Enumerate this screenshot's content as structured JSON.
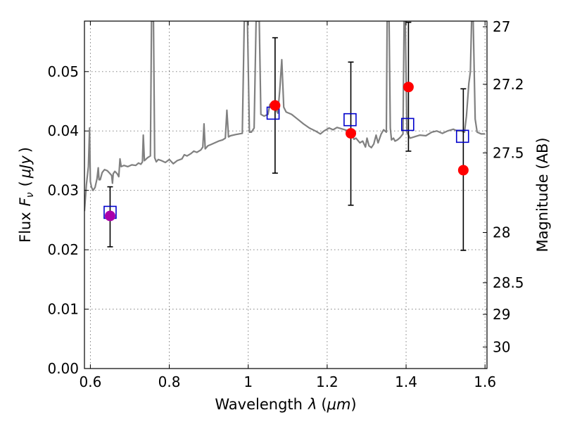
{
  "chart_data": {
    "type": "scatter",
    "xlabel_text": "Wavelength",
    "xlabel_symbol": "λ",
    "xlabel_unit": "μm",
    "ylabel_text": "Flux",
    "ylabel_symbol": "F",
    "ylabel_subscript": "ν",
    "ylabel_unit": "μJy",
    "y2label": "Magnitude (AB)",
    "xlim": [
      0.585,
      1.605
    ],
    "ylim": [
      0.0,
      0.0585
    ],
    "grid": true,
    "x_ticks": [
      {
        "value": 0.6,
        "label": "0.6"
      },
      {
        "value": 0.8,
        "label": "0.8"
      },
      {
        "value": 1.0,
        "label": "1"
      },
      {
        "value": 1.2,
        "label": "1.2"
      },
      {
        "value": 1.4,
        "label": "1.4"
      },
      {
        "value": 1.6,
        "label": "1.6"
      }
    ],
    "y_ticks": [
      {
        "value": 0.0,
        "label": "0.00"
      },
      {
        "value": 0.01,
        "label": "0.01"
      },
      {
        "value": 0.02,
        "label": "0.02"
      },
      {
        "value": 0.03,
        "label": "0.03"
      },
      {
        "value": 0.04,
        "label": "0.04"
      },
      {
        "value": 0.05,
        "label": "0.05"
      }
    ],
    "y2_ticks": [
      {
        "value": 27.0,
        "label": "27"
      },
      {
        "value": 27.2,
        "label": "27.2"
      },
      {
        "value": 27.5,
        "label": "27.5"
      },
      {
        "value": 28.0,
        "label": "28"
      },
      {
        "value": 28.5,
        "label": "28.5"
      },
      {
        "value": 29.0,
        "label": "29"
      },
      {
        "value": 30.0,
        "label": "30"
      }
    ],
    "colors": {
      "spectrum": "#808080",
      "model_photometry": "#0000cc",
      "observed": "#ff0000",
      "observed_first": "#aa00aa",
      "errorbar": "#000000"
    },
    "series": [
      {
        "kind": "spectrum",
        "points": [
          [
            0.585,
            0.0265
          ],
          [
            0.59,
            0.031
          ],
          [
            0.595,
            0.034
          ],
          [
            0.598,
            0.0405
          ],
          [
            0.6,
            0.0315
          ],
          [
            0.603,
            0.0305
          ],
          [
            0.607,
            0.03
          ],
          [
            0.612,
            0.0305
          ],
          [
            0.617,
            0.032
          ],
          [
            0.62,
            0.0338
          ],
          [
            0.622,
            0.0318
          ],
          [
            0.625,
            0.0318
          ],
          [
            0.63,
            0.033
          ],
          [
            0.636,
            0.0335
          ],
          [
            0.643,
            0.0333
          ],
          [
            0.65,
            0.0328
          ],
          [
            0.654,
            0.0325
          ],
          [
            0.656,
            0.0312
          ],
          [
            0.658,
            0.0328
          ],
          [
            0.662,
            0.0332
          ],
          [
            0.668,
            0.0328
          ],
          [
            0.672,
            0.0323
          ],
          [
            0.675,
            0.0353
          ],
          [
            0.678,
            0.034
          ],
          [
            0.685,
            0.0342
          ],
          [
            0.695,
            0.034
          ],
          [
            0.705,
            0.0343
          ],
          [
            0.715,
            0.0342
          ],
          [
            0.722,
            0.0346
          ],
          [
            0.728,
            0.0344
          ],
          [
            0.732,
            0.0348
          ],
          [
            0.734,
            0.0393
          ],
          [
            0.737,
            0.035
          ],
          [
            0.745,
            0.0355
          ],
          [
            0.752,
            0.0358
          ],
          [
            0.755,
            0.0585
          ],
          [
            0.76,
            0.0585
          ],
          [
            0.763,
            0.0355
          ],
          [
            0.767,
            0.0348
          ],
          [
            0.772,
            0.0352
          ],
          [
            0.78,
            0.035
          ],
          [
            0.79,
            0.0347
          ],
          [
            0.8,
            0.0352
          ],
          [
            0.81,
            0.0345
          ],
          [
            0.82,
            0.035
          ],
          [
            0.832,
            0.0353
          ],
          [
            0.838,
            0.036
          ],
          [
            0.845,
            0.0358
          ],
          [
            0.855,
            0.0362
          ],
          [
            0.862,
            0.0366
          ],
          [
            0.87,
            0.0364
          ],
          [
            0.88,
            0.0368
          ],
          [
            0.885,
            0.0373
          ],
          [
            0.888,
            0.0412
          ],
          [
            0.891,
            0.037
          ],
          [
            0.898,
            0.0375
          ],
          [
            0.905,
            0.0377
          ],
          [
            0.915,
            0.038
          ],
          [
            0.925,
            0.0383
          ],
          [
            0.935,
            0.0385
          ],
          [
            0.942,
            0.0388
          ],
          [
            0.946,
            0.0435
          ],
          [
            0.95,
            0.039
          ],
          [
            0.955,
            0.0392
          ],
          [
            0.968,
            0.0394
          ],
          [
            0.985,
            0.0396
          ],
          [
            0.99,
            0.0585
          ],
          [
            0.998,
            0.0585
          ],
          [
            1.003,
            0.0398
          ],
          [
            1.008,
            0.0398
          ],
          [
            1.015,
            0.0405
          ],
          [
            1.02,
            0.0585
          ],
          [
            1.028,
            0.0585
          ],
          [
            1.032,
            0.0428
          ],
          [
            1.04,
            0.0425
          ],
          [
            1.05,
            0.0428
          ],
          [
            1.055,
            0.0445
          ],
          [
            1.06,
            0.044
          ],
          [
            1.068,
            0.0438
          ],
          [
            1.075,
            0.043
          ],
          [
            1.08,
            0.047
          ],
          [
            1.085,
            0.052
          ],
          [
            1.09,
            0.044
          ],
          [
            1.096,
            0.0432
          ],
          [
            1.11,
            0.0428
          ],
          [
            1.125,
            0.042
          ],
          [
            1.14,
            0.0412
          ],
          [
            1.155,
            0.0405
          ],
          [
            1.17,
            0.04
          ],
          [
            1.183,
            0.0395
          ],
          [
            1.192,
            0.04
          ],
          [
            1.205,
            0.0405
          ],
          [
            1.215,
            0.0402
          ],
          [
            1.225,
            0.0406
          ],
          [
            1.24,
            0.0403
          ],
          [
            1.255,
            0.04
          ],
          [
            1.264,
            0.0394
          ],
          [
            1.268,
            0.0386
          ],
          [
            1.273,
            0.0388
          ],
          [
            1.283,
            0.038
          ],
          [
            1.29,
            0.0383
          ],
          [
            1.297,
            0.0373
          ],
          [
            1.301,
            0.0388
          ],
          [
            1.306,
            0.0375
          ],
          [
            1.312,
            0.0372
          ],
          [
            1.318,
            0.0378
          ],
          [
            1.324,
            0.0393
          ],
          [
            1.329,
            0.038
          ],
          [
            1.337,
            0.0395
          ],
          [
            1.343,
            0.0402
          ],
          [
            1.35,
            0.0398
          ],
          [
            1.352,
            0.0585
          ],
          [
            1.357,
            0.0585
          ],
          [
            1.36,
            0.0405
          ],
          [
            1.363,
            0.0385
          ],
          [
            1.368,
            0.0388
          ],
          [
            1.372,
            0.0383
          ],
          [
            1.378,
            0.0385
          ],
          [
            1.385,
            0.0389
          ],
          [
            1.392,
            0.0395
          ],
          [
            1.395,
            0.0585
          ],
          [
            1.398,
            0.0585
          ],
          [
            1.402,
            0.0398
          ],
          [
            1.41,
            0.0388
          ],
          [
            1.42,
            0.039
          ],
          [
            1.435,
            0.0393
          ],
          [
            1.45,
            0.0392
          ],
          [
            1.465,
            0.0398
          ],
          [
            1.478,
            0.04
          ],
          [
            1.492,
            0.0396
          ],
          [
            1.505,
            0.04
          ],
          [
            1.52,
            0.0403
          ],
          [
            1.53,
            0.04
          ],
          [
            1.54,
            0.04
          ],
          [
            1.548,
            0.0398
          ],
          [
            1.553,
            0.0425
          ],
          [
            1.559,
            0.048
          ],
          [
            1.563,
            0.05
          ],
          [
            1.566,
            0.0585
          ],
          [
            1.57,
            0.0585
          ],
          [
            1.575,
            0.042
          ],
          [
            1.58,
            0.0398
          ],
          [
            1.59,
            0.0395
          ],
          [
            1.6,
            0.0395
          ]
        ]
      },
      {
        "kind": "model_photometry",
        "marker": "open-square",
        "points": [
          {
            "x": 0.65,
            "y": 0.0263
          },
          {
            "x": 1.063,
            "y": 0.043
          },
          {
            "x": 1.258,
            "y": 0.0419
          },
          {
            "x": 1.404,
            "y": 0.0411
          },
          {
            "x": 1.543,
            "y": 0.0391
          }
        ]
      },
      {
        "kind": "observed",
        "marker": "filled-circle",
        "points": [
          {
            "x": 0.65,
            "y": 0.0257,
            "yerr_low": 0.0205,
            "yerr_high": 0.0306,
            "color_key": "observed_first"
          },
          {
            "x": 1.068,
            "y": 0.0443,
            "yerr_low": 0.0329,
            "yerr_high": 0.0557,
            "color_key": "observed"
          },
          {
            "x": 1.26,
            "y": 0.0396,
            "yerr_low": 0.0275,
            "yerr_high": 0.0516,
            "color_key": "observed"
          },
          {
            "x": 1.406,
            "y": 0.0474,
            "yerr_low": 0.0366,
            "yerr_high": 0.0583,
            "color_key": "observed"
          },
          {
            "x": 1.545,
            "y": 0.0334,
            "yerr_low": 0.0199,
            "yerr_high": 0.0471,
            "color_key": "observed"
          }
        ]
      }
    ]
  }
}
